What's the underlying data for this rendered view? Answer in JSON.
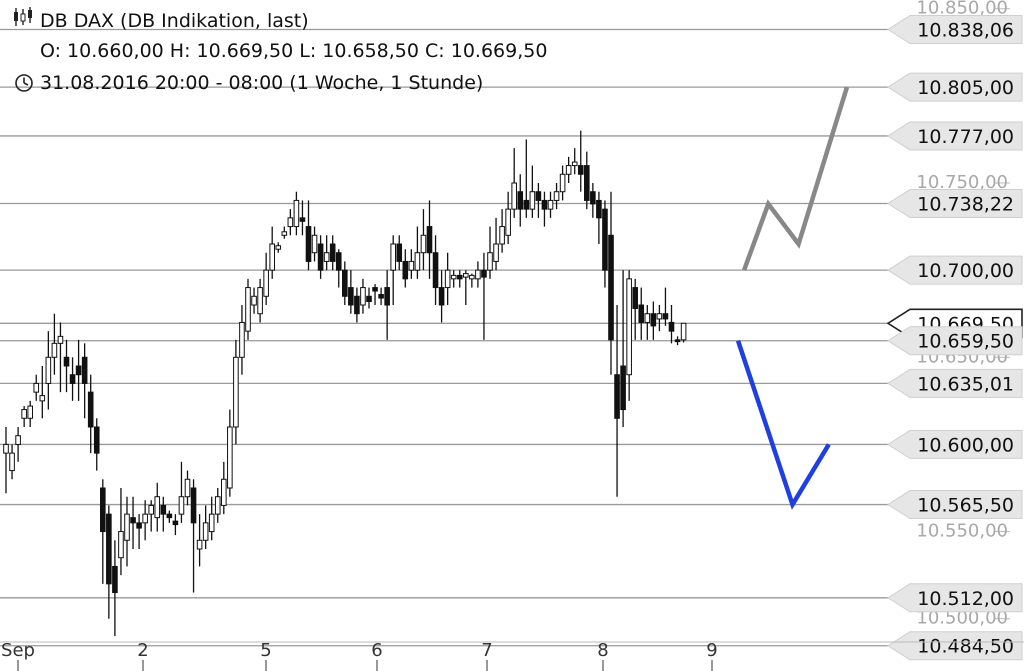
{
  "header": {
    "title": "DB DAX (DB Indikation, last)",
    "ohlc": "O: 10.660,00  H: 10.669,50  L: 10.658,50  C: 10.669,50",
    "period": "31.08.2016 20:00 - 08:00 (1 Woche, 1 Stunde)",
    "candle_icon": "candlestick-icon",
    "clock_icon": "clock-icon"
  },
  "chart_data": {
    "type": "candlestick",
    "ylim": [
      10470,
      10855
    ],
    "grid": "horizontal",
    "y_ticks": [
      "10.850,00",
      "10.750,00",
      "10.650,00",
      "10.550,00",
      "10.500,00"
    ],
    "x_ticks": [
      "Sep",
      "2",
      "5",
      "6",
      "7",
      "8",
      "9"
    ],
    "levels": [
      {
        "label": "10.838,06",
        "value": 10838.06
      },
      {
        "label": "10.805,00",
        "value": 10805.0
      },
      {
        "label": "10.777,00",
        "value": 10777.0
      },
      {
        "label": "10.738,22",
        "value": 10738.22
      },
      {
        "label": "10.700,00",
        "value": 10700.0
      },
      {
        "label": "10.669,50",
        "value": 10669.5,
        "current": true
      },
      {
        "label": "10.659,50",
        "value": 10659.5
      },
      {
        "label": "10.635,01",
        "value": 10635.01
      },
      {
        "label": "10.600,00",
        "value": 10600.0
      },
      {
        "label": "10.565,50",
        "value": 10565.5
      },
      {
        "label": "10.512,00",
        "value": 10512.0
      },
      {
        "label": "10.484,50",
        "value": 10484.5
      }
    ],
    "candles": [
      [
        10595,
        10600,
        10572,
        10610
      ],
      [
        10585,
        10595,
        10580,
        10600
      ],
      [
        10600,
        10605,
        10590,
        10610
      ],
      [
        10615,
        10620,
        10610,
        10622
      ],
      [
        10615,
        10622,
        10610,
        10625
      ],
      [
        10630,
        10635,
        10625,
        10640
      ],
      [
        10625,
        10628,
        10615,
        10645
      ],
      [
        10635,
        10650,
        10620,
        10665
      ],
      [
        10650,
        10658,
        10640,
        10675
      ],
      [
        10658,
        10662,
        10630,
        10670
      ],
      [
        10650,
        10645,
        10630,
        10660
      ],
      [
        10640,
        10635,
        10625,
        10650
      ],
      [
        10645,
        10640,
        10625,
        10660
      ],
      [
        10650,
        10635,
        10615,
        10658
      ],
      [
        10630,
        10610,
        10595,
        10640
      ],
      [
        10610,
        10595,
        10585,
        10615
      ],
      [
        10575,
        10550,
        10520,
        10580
      ],
      [
        10560,
        10520,
        10500,
        10565
      ],
      [
        10530,
        10515,
        10490,
        10545
      ],
      [
        10535,
        10550,
        10525,
        10575
      ],
      [
        10545,
        10560,
        10530,
        10570
      ],
      [
        10558,
        10555,
        10540,
        10570
      ],
      [
        10555,
        10552,
        10540,
        10560
      ],
      [
        10555,
        10560,
        10545,
        10568
      ],
      [
        10560,
        10565,
        10550,
        10568
      ],
      [
        10558,
        10570,
        10550,
        10578
      ],
      [
        10565,
        10560,
        10550,
        10570
      ],
      [
        10560,
        10558,
        10555,
        10562
      ],
      [
        10556,
        10554,
        10548,
        10560
      ],
      [
        10560,
        10570,
        10555,
        10590
      ],
      [
        10570,
        10580,
        10565,
        10585
      ],
      [
        10575,
        10555,
        10515,
        10580
      ],
      [
        10540,
        10545,
        10530,
        10560
      ],
      [
        10545,
        10555,
        10540,
        10565
      ],
      [
        10550,
        10560,
        10545,
        10570
      ],
      [
        10560,
        10570,
        10555,
        10575
      ],
      [
        10565,
        10580,
        10560,
        10590
      ],
      [
        10575,
        10610,
        10570,
        10620
      ],
      [
        10610,
        10650,
        10600,
        10660
      ],
      [
        10650,
        10670,
        10640,
        10680
      ],
      [
        10665,
        10690,
        10660,
        10695
      ],
      [
        10680,
        10685,
        10675,
        10690
      ],
      [
        10675,
        10690,
        10670,
        10695
      ],
      [
        10685,
        10700,
        10680,
        10710
      ],
      [
        10700,
        10715,
        10695,
        10725
      ],
      [
        10712,
        10714,
        10710,
        10716
      ],
      [
        10720,
        10722,
        10718,
        10725
      ],
      [
        10725,
        10730,
        10720,
        10735
      ],
      [
        10725,
        10740,
        10720,
        10745
      ],
      [
        10730,
        10728,
        10720,
        10740
      ],
      [
        10725,
        10705,
        10700,
        10740
      ],
      [
        10710,
        10720,
        10705,
        10725
      ],
      [
        10715,
        10700,
        10695,
        10720
      ],
      [
        10705,
        10710,
        10700,
        10720
      ],
      [
        10715,
        10705,
        10700,
        10720
      ],
      [
        10710,
        10700,
        10690,
        10712
      ],
      [
        10700,
        10685,
        10680,
        10705
      ],
      [
        10690,
        10680,
        10675,
        10700
      ],
      [
        10685,
        10675,
        10670,
        10690
      ],
      [
        10680,
        10690,
        10675,
        10695
      ],
      [
        10685,
        10682,
        10678,
        10690
      ],
      [
        10690,
        10688,
        10680,
        10692
      ],
      [
        10686,
        10684,
        10680,
        10690
      ],
      [
        10690,
        10680,
        10660,
        10700
      ],
      [
        10700,
        10715,
        10680,
        10720
      ],
      [
        10715,
        10705,
        10700,
        10720
      ],
      [
        10705,
        10695,
        10690,
        10712
      ],
      [
        10700,
        10705,
        10695,
        10712
      ],
      [
        10700,
        10710,
        10695,
        10725
      ],
      [
        10710,
        10720,
        10700,
        10735
      ],
      [
        10725,
        10710,
        10695,
        10740
      ],
      [
        10710,
        10690,
        10680,
        10720
      ],
      [
        10690,
        10680,
        10670,
        10700
      ],
      [
        10690,
        10700,
        10680,
        10710
      ],
      [
        10695,
        10697,
        10690,
        10700
      ],
      [
        10697,
        10695,
        10690,
        10700
      ],
      [
        10696,
        10698,
        10680,
        10700
      ],
      [
        10695,
        10697,
        10690,
        10698
      ],
      [
        10695,
        10700,
        10690,
        10705
      ],
      [
        10700,
        10696,
        10660,
        10710
      ],
      [
        10700,
        10710,
        10695,
        10725
      ],
      [
        10705,
        10715,
        10700,
        10730
      ],
      [
        10715,
        10725,
        10710,
        10735
      ],
      [
        10720,
        10735,
        10715,
        10745
      ],
      [
        10735,
        10750,
        10730,
        10770
      ],
      [
        10745,
        10735,
        10725,
        10755
      ],
      [
        10740,
        10735,
        10730,
        10775
      ],
      [
        10735,
        10745,
        10730,
        10760
      ],
      [
        10745,
        10740,
        10730,
        10750
      ],
      [
        10740,
        10735,
        10725,
        10745
      ],
      [
        10735,
        10740,
        10730,
        10745
      ],
      [
        10740,
        10745,
        10735,
        10750
      ],
      [
        10745,
        10755,
        10740,
        10760
      ],
      [
        10755,
        10760,
        10750,
        10765
      ],
      [
        10760,
        10762,
        10755,
        10770
      ],
      [
        10760,
        10755,
        10745,
        10780
      ],
      [
        10760,
        10740,
        10735,
        10768
      ],
      [
        10745,
        10738,
        10730,
        10750
      ],
      [
        10740,
        10730,
        10715,
        10745
      ],
      [
        10735,
        10700,
        10690,
        10740
      ],
      [
        10720,
        10660,
        10640,
        10745
      ],
      [
        10640,
        10615,
        10570,
        10680
      ],
      [
        10645,
        10620,
        10610,
        10700
      ],
      [
        10640,
        10695,
        10625,
        10700
      ],
      [
        10690,
        10678,
        10660,
        10695
      ],
      [
        10680,
        10670,
        10660,
        10690
      ],
      [
        10670,
        10675,
        10660,
        10680
      ],
      [
        10675,
        10668,
        10660,
        10682
      ],
      [
        10672,
        10675,
        10665,
        10680
      ],
      [
        10675,
        10672,
        10668,
        10690
      ],
      [
        10670,
        10665,
        10658,
        10680
      ],
      [
        10660,
        10659,
        10657,
        10662
      ],
      [
        10660,
        10669.5,
        10658.5,
        10669.5
      ]
    ],
    "projections": [
      {
        "name": "",
        "color": "#888888",
        "points": [
          [
            122,
            10700
          ],
          [
            126,
            10738
          ],
          [
            131,
            10715
          ],
          [
            139,
            10805
          ]
        ]
      },
      {
        "name": "",
        "color": "#1f3fe0",
        "points": [
          [
            121,
            10659.5
          ],
          [
            130,
            10565.5
          ],
          [
            136,
            10600
          ]
        ]
      }
    ]
  }
}
